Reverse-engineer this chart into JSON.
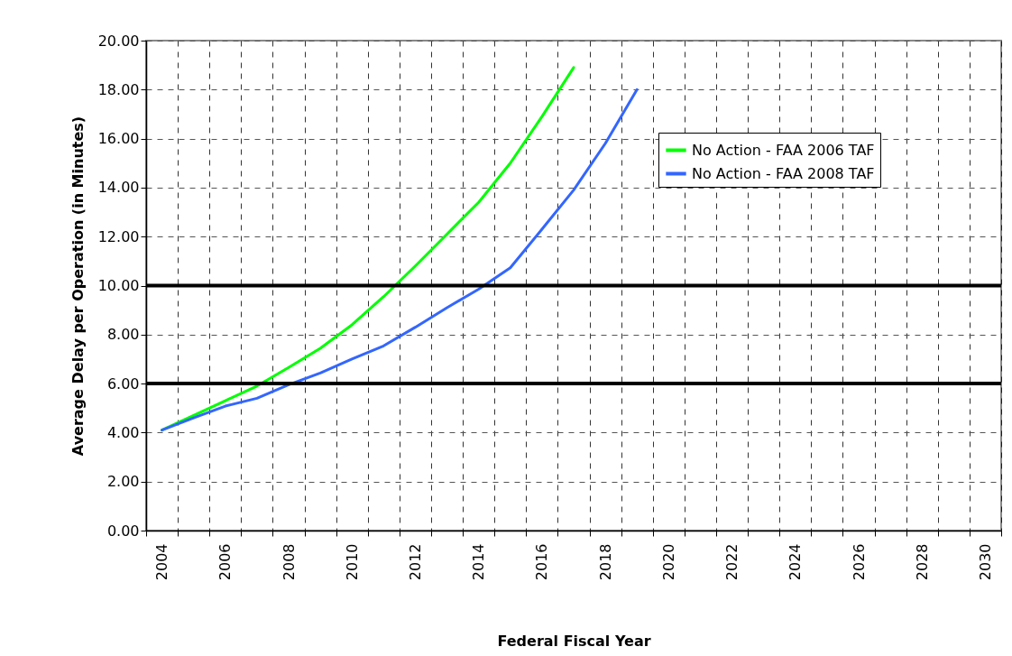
{
  "chart_data": {
    "type": "line",
    "xlabel": "Federal Fiscal Year",
    "ylabel": "Average Delay per Operation (in Minutes)",
    "categories": [
      "2004",
      null,
      "2006",
      null,
      "2008",
      null,
      "2010",
      null,
      "2012",
      null,
      "2014",
      null,
      "2016",
      null,
      "2018",
      null,
      "2020",
      null,
      "2022",
      null,
      "2024",
      null,
      "2026",
      null,
      "2028",
      null,
      "2030"
    ],
    "series": [
      {
        "name": "No Action - FAA 2006 TAF",
        "color": "#00ff00",
        "values": [
          4.1,
          4.7,
          5.3,
          5.9,
          6.66,
          7.44,
          8.4,
          9.55,
          10.8,
          12.1,
          13.4,
          15.0,
          16.9,
          18.9,
          null,
          null,
          null,
          null,
          null,
          null,
          null,
          null,
          null,
          null,
          null,
          null,
          null
        ]
      },
      {
        "name": "No Action - FAA 2008 TAF",
        "color": "#3366ff",
        "values": [
          4.1,
          4.6,
          5.08,
          5.4,
          5.95,
          6.43,
          7.0,
          7.54,
          8.3,
          9.1,
          9.85,
          10.73,
          12.3,
          13.9,
          15.8,
          18.0,
          null,
          null,
          null,
          null,
          null,
          null,
          null,
          null,
          null,
          null,
          null
        ]
      }
    ],
    "ylim": [
      0,
      20
    ],
    "yticks": [
      {
        "value": 0,
        "label": "0.00"
      },
      {
        "value": 2,
        "label": "2.00"
      },
      {
        "value": 4,
        "label": "4.00"
      },
      {
        "value": 6,
        "label": "6.00"
      },
      {
        "value": 8,
        "label": "8.00"
      },
      {
        "value": 10,
        "label": "10.00"
      },
      {
        "value": 12,
        "label": "12.00"
      },
      {
        "value": 14,
        "label": "14.00"
      },
      {
        "value": 16,
        "label": "16.00"
      },
      {
        "value": 18,
        "label": "18.00"
      },
      {
        "value": 20,
        "label": "20.00"
      }
    ],
    "ref_lines": [
      {
        "axis": "y",
        "value": 6,
        "color": "#000000"
      },
      {
        "axis": "y",
        "value": 10,
        "color": "#000000"
      }
    ],
    "grid": true,
    "legend": "top right"
  }
}
